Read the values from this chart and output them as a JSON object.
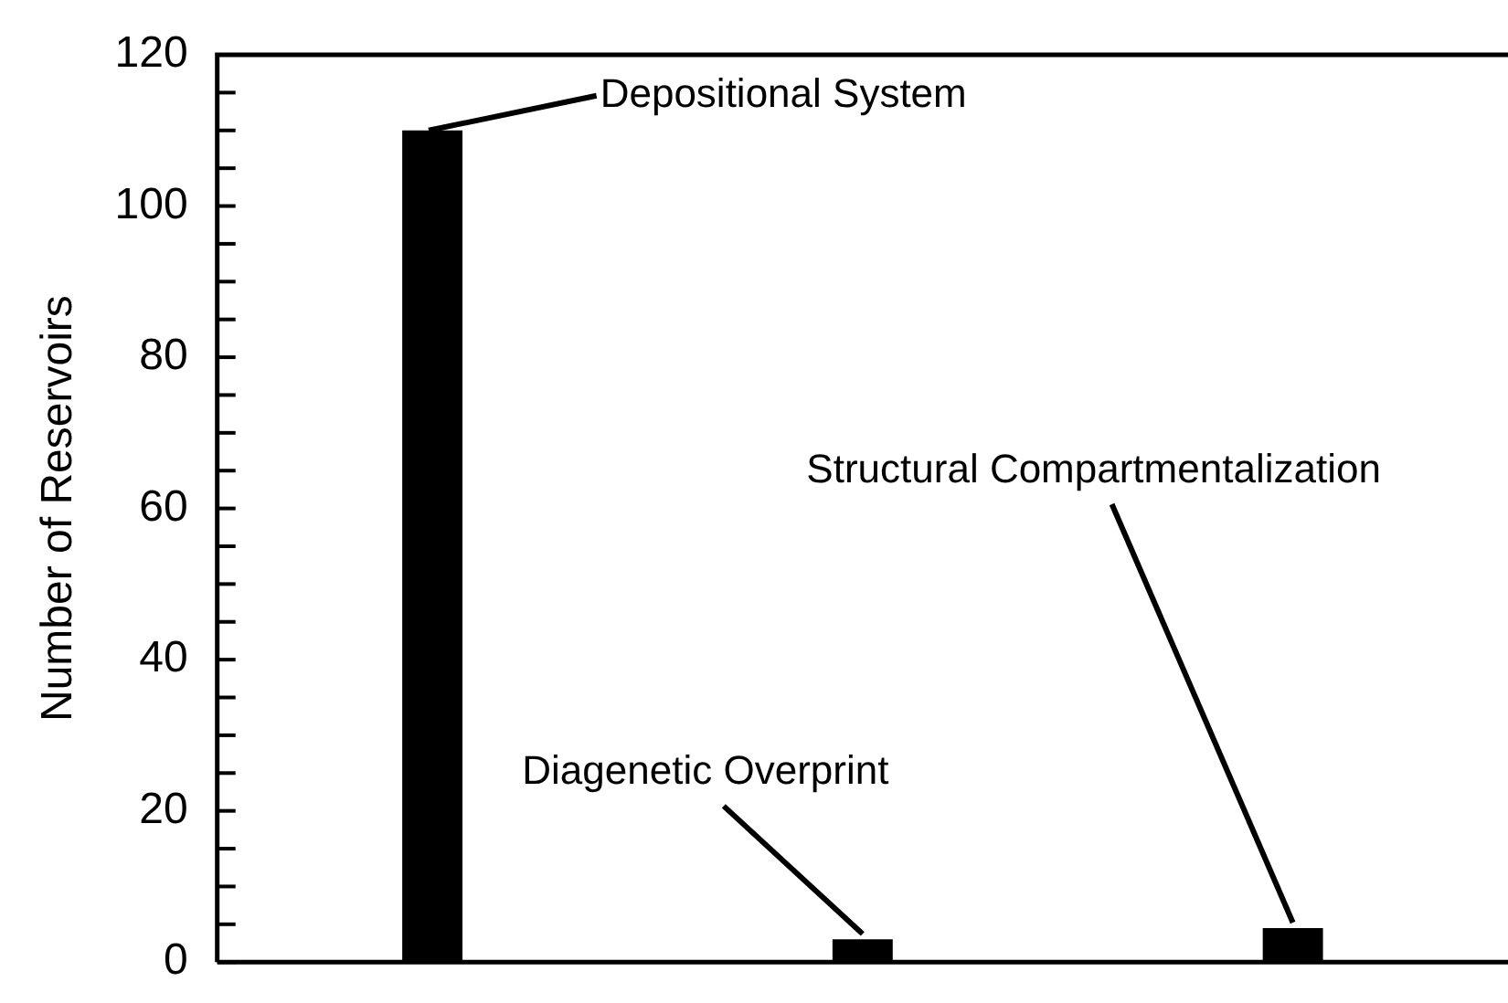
{
  "chart_data": {
    "type": "bar",
    "ylabel": "Number of Reservoirs",
    "categories": [
      null,
      null,
      null
    ],
    "values": [
      110,
      3,
      4.5
    ],
    "color": "#000000",
    "ylim": [
      0,
      120
    ],
    "yticks": [
      0,
      {
        "value": 5,
        "label": null
      },
      {
        "value": 10,
        "label": null
      },
      {
        "value": 15,
        "label": null
      },
      20,
      {
        "value": 25,
        "label": null
      },
      {
        "value": 30,
        "label": null
      },
      {
        "value": 35,
        "label": null
      },
      40,
      {
        "value": 45,
        "label": null
      },
      {
        "value": 50,
        "label": null
      },
      {
        "value": 55,
        "label": null
      },
      60,
      {
        "value": 65,
        "label": null
      },
      {
        "value": 70,
        "label": null
      },
      {
        "value": 75,
        "label": null
      },
      80,
      {
        "value": 85,
        "label": null
      },
      {
        "value": 90,
        "label": null
      },
      {
        "value": 95,
        "label": null
      },
      100,
      {
        "value": 105,
        "label": null
      },
      {
        "value": 110,
        "label": null
      },
      {
        "value": 115,
        "label": null
      },
      120
    ],
    "tick_labels": "y",
    "annotations": [
      "Depositional System",
      "Diagenetic Overprint",
      "Structural Compartmentalization"
    ]
  }
}
